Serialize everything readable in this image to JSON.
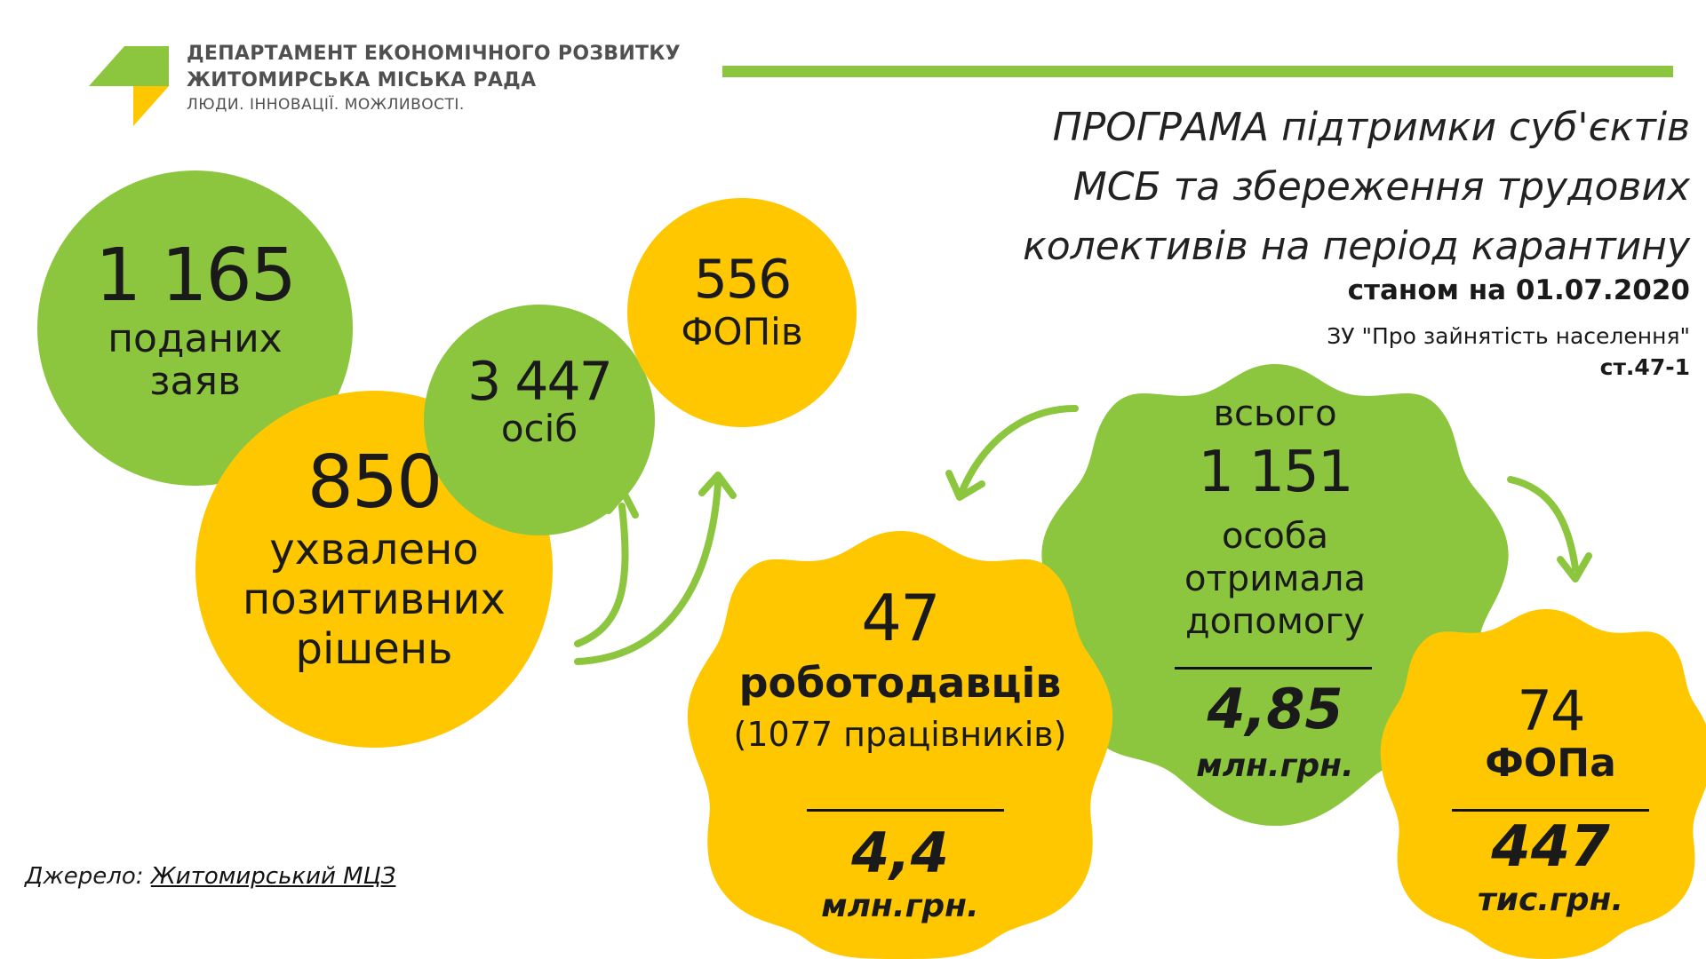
{
  "header": {
    "dept_line1": "ДЕПАРТАМЕНТ ЕКОНОМІЧНОГО РОЗВИТКУ",
    "dept_line2": "ЖИТОМИРСЬКА МІСЬКА РАДА",
    "tagline": "ЛЮДИ. ІННОВАЦІЇ. МОЖЛИВОСТІ."
  },
  "title": {
    "line1": "ПРОГРАМА підтримки суб'єктів",
    "line2": "МСБ та збереження трудових",
    "line3": "колективів на період карантину",
    "date": "станом на 01.07.2020",
    "law1": "ЗУ \"Про зайнятість населення\"",
    "law2": "ст.47-1"
  },
  "stats": {
    "applications": {
      "value": "1 165",
      "label1": "поданих",
      "label2": "заяв"
    },
    "approved": {
      "value": "850",
      "label1": "ухвалено",
      "label2": "позитивних",
      "label3": "рішень"
    },
    "persons": {
      "value": "3 447",
      "label": "осіб"
    },
    "fop": {
      "value": "556",
      "label": "ФОПів"
    },
    "total": {
      "prefix": "всього",
      "value": "1 151",
      "label1": "особа",
      "label2": "отримала",
      "label3": "допомогу",
      "amount": "4,85",
      "unit": "млн.грн."
    },
    "employers": {
      "value": "47",
      "label": "роботодавців",
      "workers": "(1077 працівників)",
      "amount": "4,4",
      "unit": "млн.грн."
    },
    "fopa": {
      "value": "74",
      "label": "ФОПа",
      "amount": "447",
      "unit": "тис.грн."
    }
  },
  "footer": {
    "source_label": "Джерело:",
    "source_link": "Житомирський МЦЗ"
  },
  "colors": {
    "green": "#8cc63f",
    "yellow": "#ffc700",
    "text": "#1a1a1a"
  }
}
